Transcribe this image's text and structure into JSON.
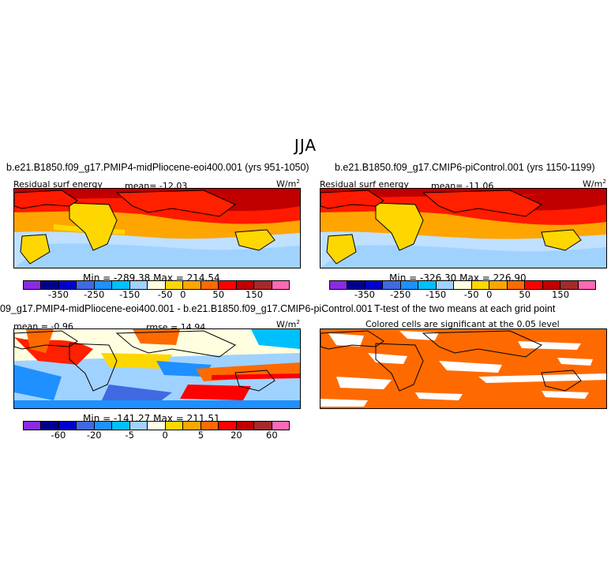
{
  "main_title": "JJA",
  "panels": [
    {
      "case": "b.e21.B1850.f09_g17.PMIP4-midPliocene-eoi400.001 (yrs 951-1050)",
      "variable": "Residual surf energy",
      "mean_text": "mean= -12.03",
      "units": "W/m",
      "units_exp": "2",
      "minmax": "Min = -289.38  Max = 214.54"
    },
    {
      "case": "b.e21.B1850.f09_g17.CMIP6-piControl.001 (yrs 1150-1199)",
      "variable": "Residual surf energy",
      "mean_text": "mean= -11.06",
      "units": "W/m",
      "units_exp": "2",
      "minmax": "Min = -326.30  Max = 226.90"
    },
    {
      "case": "09_g17.PMIP4-midPliocene-eoi400.001 - b.e21.B1850.f09_g17.CMIP6-piControl.001",
      "mean_text": "mean =  -0.96",
      "rmse_text": "rmse =  14.94",
      "units": "W/m",
      "units_exp": "2",
      "minmax": "Min = -141.27  Max = 211.51"
    },
    {
      "case": "T-test of the two means at each grid point",
      "subtitle": "Colored cells are significant at the 0.05 level"
    }
  ],
  "colorbar_abs": {
    "colors": [
      "#8a2be2",
      "#00008b",
      "#0000cd",
      "#4169e1",
      "#1e90ff",
      "#00bfff",
      "#a0d2ff",
      "#ffffe0",
      "#ffd700",
      "#ffa500",
      "#ff6a00",
      "#ff0000",
      "#c00000",
      "#a52a2a",
      "#ff69b4"
    ],
    "labels": [
      "-350",
      "-250",
      "-150",
      "-50",
      "0",
      "50",
      "150"
    ]
  },
  "colorbar_diff": {
    "colors": [
      "#8a2be2",
      "#00008b",
      "#0000cd",
      "#4169e1",
      "#1e90ff",
      "#00bfff",
      "#a0d2ff",
      "#ffffe0",
      "#ffd700",
      "#ffa500",
      "#ff6a00",
      "#ff0000",
      "#c00000",
      "#a52a2a",
      "#ff69b4"
    ],
    "labels": [
      "-60",
      "-20",
      "-5",
      "0",
      "5",
      "20",
      "60"
    ]
  }
}
